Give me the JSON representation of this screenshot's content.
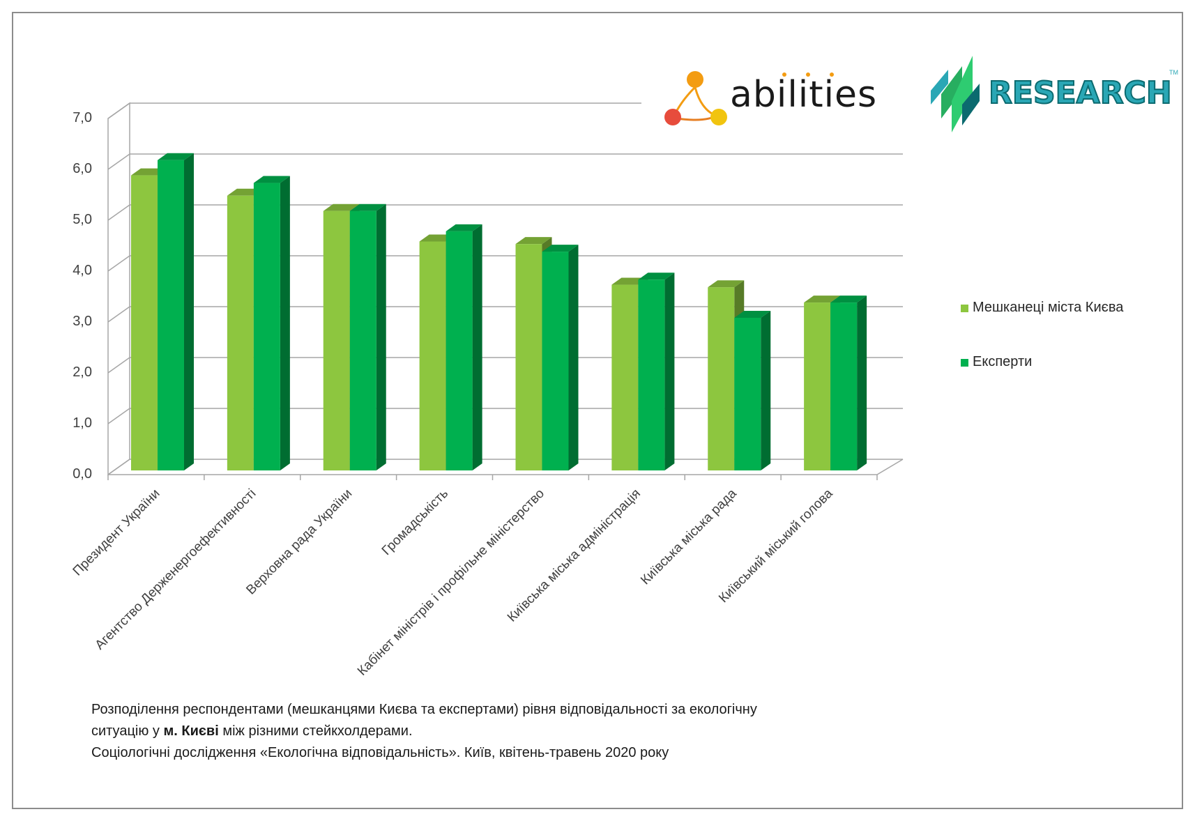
{
  "chart_data": {
    "type": "bar",
    "style": "3d-clustered-column",
    "categories": [
      "Президент України",
      "Агентство Держенергоефективності",
      "Верховна рада України",
      "Громадськість",
      "Кабінет міністрів і профільне міністерство",
      "Київська міська адміністрація",
      "Київська міська рада",
      "Київський міський голова"
    ],
    "series": [
      {
        "name": "Мешканеці міста Києва",
        "color": "#8dc63f",
        "values": [
          5.8,
          5.4,
          5.1,
          4.5,
          4.45,
          3.65,
          3.6,
          3.3
        ]
      },
      {
        "name": "Експерти",
        "color": "#00b04f",
        "values": [
          6.1,
          5.65,
          5.1,
          4.7,
          4.3,
          3.75,
          3.0,
          3.3
        ]
      }
    ],
    "ylim": [
      0,
      7
    ],
    "yticks": [
      "0,0",
      "1,0",
      "2,0",
      "3,0",
      "4,0",
      "5,0",
      "6,0",
      "7,0"
    ],
    "grid": true,
    "legend_position": "right"
  },
  "caption": {
    "line1": "Розподілення респондентами (мешканцями Києва та експертами) рівня відповідальності за екологічну",
    "line2_before": "ситуацію у ",
    "line2_bold": "м. Києві",
    "line2_after": " між різними стейкхолдерами.",
    "line3": "Соціологічні дослідження «Екологічна відповідальність». Київ, квітень-травень 2020 року"
  },
  "logos": {
    "abilities": {
      "text": "abilities",
      "colors": [
        "#f39c12",
        "#e74c3c",
        "#f1c40f"
      ]
    },
    "research": {
      "text": "RESEARCH",
      "tm": "TM",
      "colors": [
        "#2aa7b5",
        "#2ecc71",
        "#0b6a6f"
      ]
    }
  }
}
